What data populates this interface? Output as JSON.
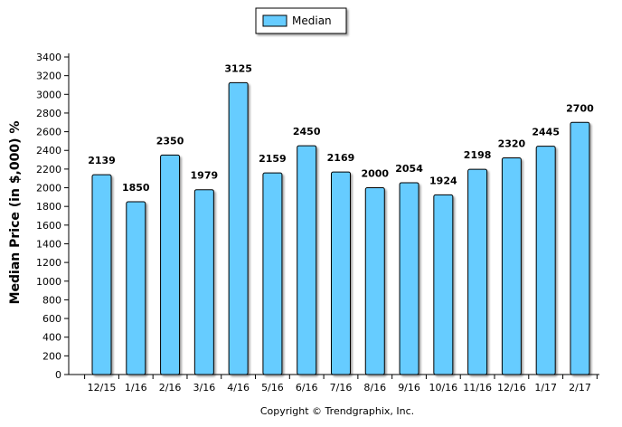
{
  "chart_data": {
    "type": "bar",
    "categories": [
      "12/15",
      "1/16",
      "2/16",
      "3/16",
      "4/16",
      "5/16",
      "6/16",
      "7/16",
      "8/16",
      "9/16",
      "10/16",
      "11/16",
      "12/16",
      "1/17",
      "2/17"
    ],
    "series": [
      {
        "name": "Median",
        "values": [
          2139,
          1850,
          2350,
          1979,
          3125,
          2159,
          2450,
          2169,
          2000,
          2054,
          1924,
          2198,
          2320,
          2445,
          2700
        ]
      }
    ],
    "ylabel": "Median Price (in $,000) %",
    "ylim": [
      0,
      3400
    ],
    "ytick_step": 200,
    "grid": false,
    "legend_position": "top-center",
    "bar_color": "#66CCFF",
    "copyright": "Copyright © Trendgraphix, Inc."
  }
}
